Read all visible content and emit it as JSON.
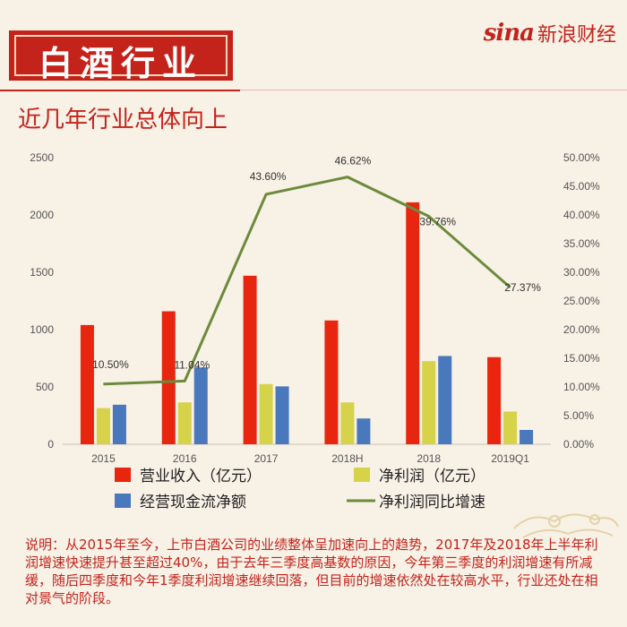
{
  "header": {
    "title": "白酒行业",
    "brand_logo": "sina",
    "brand_name": "新浪财经",
    "subtitle": "近几年行业总体向上"
  },
  "colors": {
    "revenue": "#e8250f",
    "net_profit": "#d6d249",
    "cash_flow": "#4a78bd",
    "growth": "#6c8a3b",
    "accent": "#c4231b"
  },
  "chart_data": {
    "type": "bar",
    "categories": [
      "2015",
      "2016",
      "2017",
      "2018H",
      "2018",
      "2019Q1"
    ],
    "series": [
      {
        "name": "营业收入（亿元）",
        "type": "bar",
        "axis": "left",
        "values": [
          1040,
          1160,
          1470,
          1080,
          2110,
          760
        ]
      },
      {
        "name": "净利润（亿元）",
        "type": "bar",
        "axis": "left",
        "values": [
          315,
          365,
          525,
          365,
          725,
          285
        ]
      },
      {
        "name": "经营现金流净额",
        "type": "bar",
        "axis": "left",
        "values": [
          345,
          670,
          505,
          225,
          770,
          125
        ]
      },
      {
        "name": "净利润同比增速",
        "type": "line",
        "axis": "right",
        "values": [
          10.5,
          11.04,
          43.6,
          46.62,
          39.76,
          27.37
        ],
        "labels": [
          "10.50%",
          "11.04%",
          "43.60%",
          "46.62%",
          "39.76%",
          "27.37%"
        ]
      }
    ],
    "y_left": {
      "min": 0,
      "max": 2500,
      "ticks": [
        "0",
        "500",
        "1000",
        "1500",
        "2000",
        "2500"
      ]
    },
    "y_right": {
      "min": 0,
      "max": 50,
      "ticks": [
        "0.00%",
        "5.00%",
        "10.00%",
        "15.00%",
        "20.00%",
        "25.00%",
        "30.00%",
        "35.00%",
        "40.00%",
        "45.00%",
        "50.00%"
      ]
    },
    "grid": false,
    "legend_position": "bottom"
  },
  "note": "说明：从2015年至今，上市白酒公司的业绩整体呈加速向上的趋势，2017年及2018年上半年利润增速快速提升甚至超过40%，由于去年三季度高基数的原因，今年第三季度的利润增速有所减缓，随后四季度和今年1季度利润增速继续回落，但目前的增速依然处在较高水平，行业还处在相对景气的阶段。"
}
